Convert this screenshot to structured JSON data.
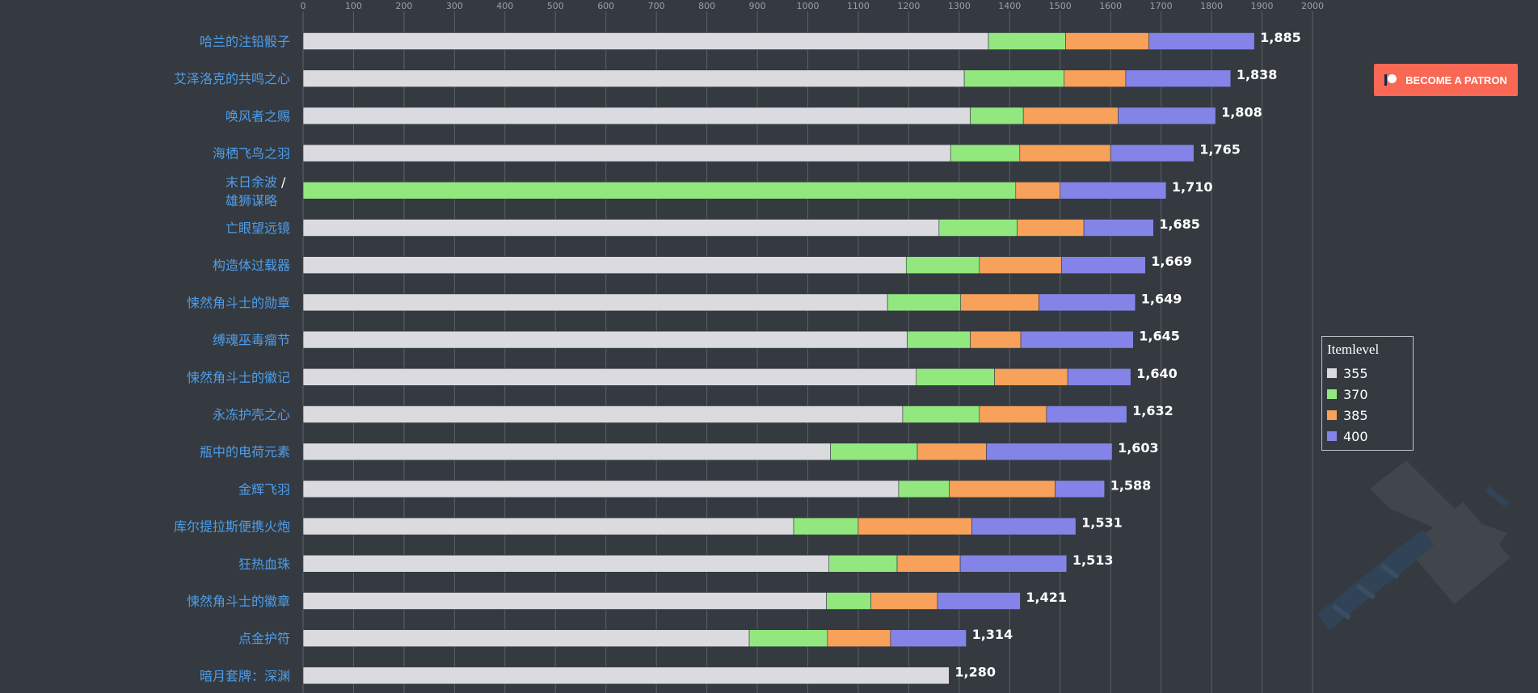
{
  "patron_button": {
    "label": "BECOME A PATRON"
  },
  "legend": {
    "title": "Itemlevel",
    "items": [
      {
        "label": "355",
        "color": "#dadadf"
      },
      {
        "label": "370",
        "color": "#92e87f"
      },
      {
        "label": "385",
        "color": "#f7a15a"
      },
      {
        "label": "400",
        "color": "#8484e8"
      }
    ]
  },
  "watermark": {
    "icon": "hammer-icon"
  },
  "chart_data": {
    "type": "bar",
    "orientation": "horizontal",
    "stacked": true,
    "xlim": [
      0,
      2000
    ],
    "x_ticks": [
      "0",
      "100",
      "200",
      "300",
      "400",
      "500",
      "600",
      "700",
      "800",
      "900",
      "1000",
      "1100",
      "1200",
      "1300",
      "1400",
      "1500",
      "1600",
      "1700",
      "1800",
      "1900",
      "2000"
    ],
    "grid": true,
    "legend_position": "right",
    "categories": [
      {
        "label": "哈兰的注铅骰子"
      },
      {
        "label": "艾泽洛克的共鸣之心"
      },
      {
        "label": "唤风者之赐"
      },
      {
        "label": "海栖飞鸟之羽"
      },
      {
        "label": "末日余波",
        "label_sep": "/",
        "label_line2": "雄狮谋略"
      },
      {
        "label": "亡眼望远镜"
      },
      {
        "label": "构造体过载器"
      },
      {
        "label": "悚然角斗士的勋章"
      },
      {
        "label": "缚魂巫毒瘤节"
      },
      {
        "label": "悚然角斗士的徽记"
      },
      {
        "label": "永冻护壳之心"
      },
      {
        "label": "瓶中的电荷元素"
      },
      {
        "label": "金辉飞羽"
      },
      {
        "label": "库尔提拉斯便携火炮"
      },
      {
        "label": "狂热血珠"
      },
      {
        "label": "悚然角斗士的徽章"
      },
      {
        "label": "点金护符"
      },
      {
        "label": "暗月套牌：深渊"
      }
    ],
    "series": [
      {
        "name": "355",
        "color": "#dadadf",
        "values": [
          1358,
          1310,
          1322,
          1283,
          0,
          1260,
          1195,
          1158,
          1197,
          1215,
          1188,
          1045,
          1180,
          972,
          1042,
          1037,
          884,
          1280
        ]
      },
      {
        "name": "370",
        "color": "#92e87f",
        "values": [
          153,
          198,
          105,
          137,
          1412,
          155,
          145,
          145,
          125,
          155,
          152,
          172,
          100,
          128,
          135,
          88,
          155,
          0
        ]
      },
      {
        "name": "385",
        "color": "#f7a15a",
        "values": [
          165,
          122,
          188,
          180,
          88,
          132,
          163,
          155,
          100,
          145,
          133,
          137,
          210,
          225,
          125,
          132,
          125,
          0
        ]
      },
      {
        "name": "400",
        "color": "#8484e8",
        "values": [
          209,
          208,
          193,
          165,
          210,
          138,
          166,
          191,
          223,
          125,
          159,
          249,
          98,
          206,
          211,
          164,
          150,
          0
        ]
      }
    ],
    "totals": [
      "1,885",
      "1,838",
      "1,808",
      "1,765",
      "1,710",
      "1,685",
      "1,669",
      "1,649",
      "1,645",
      "1,640",
      "1,632",
      "1,603",
      "1,588",
      "1,531",
      "1,513",
      "1,421",
      "1,314",
      "1,280"
    ]
  }
}
